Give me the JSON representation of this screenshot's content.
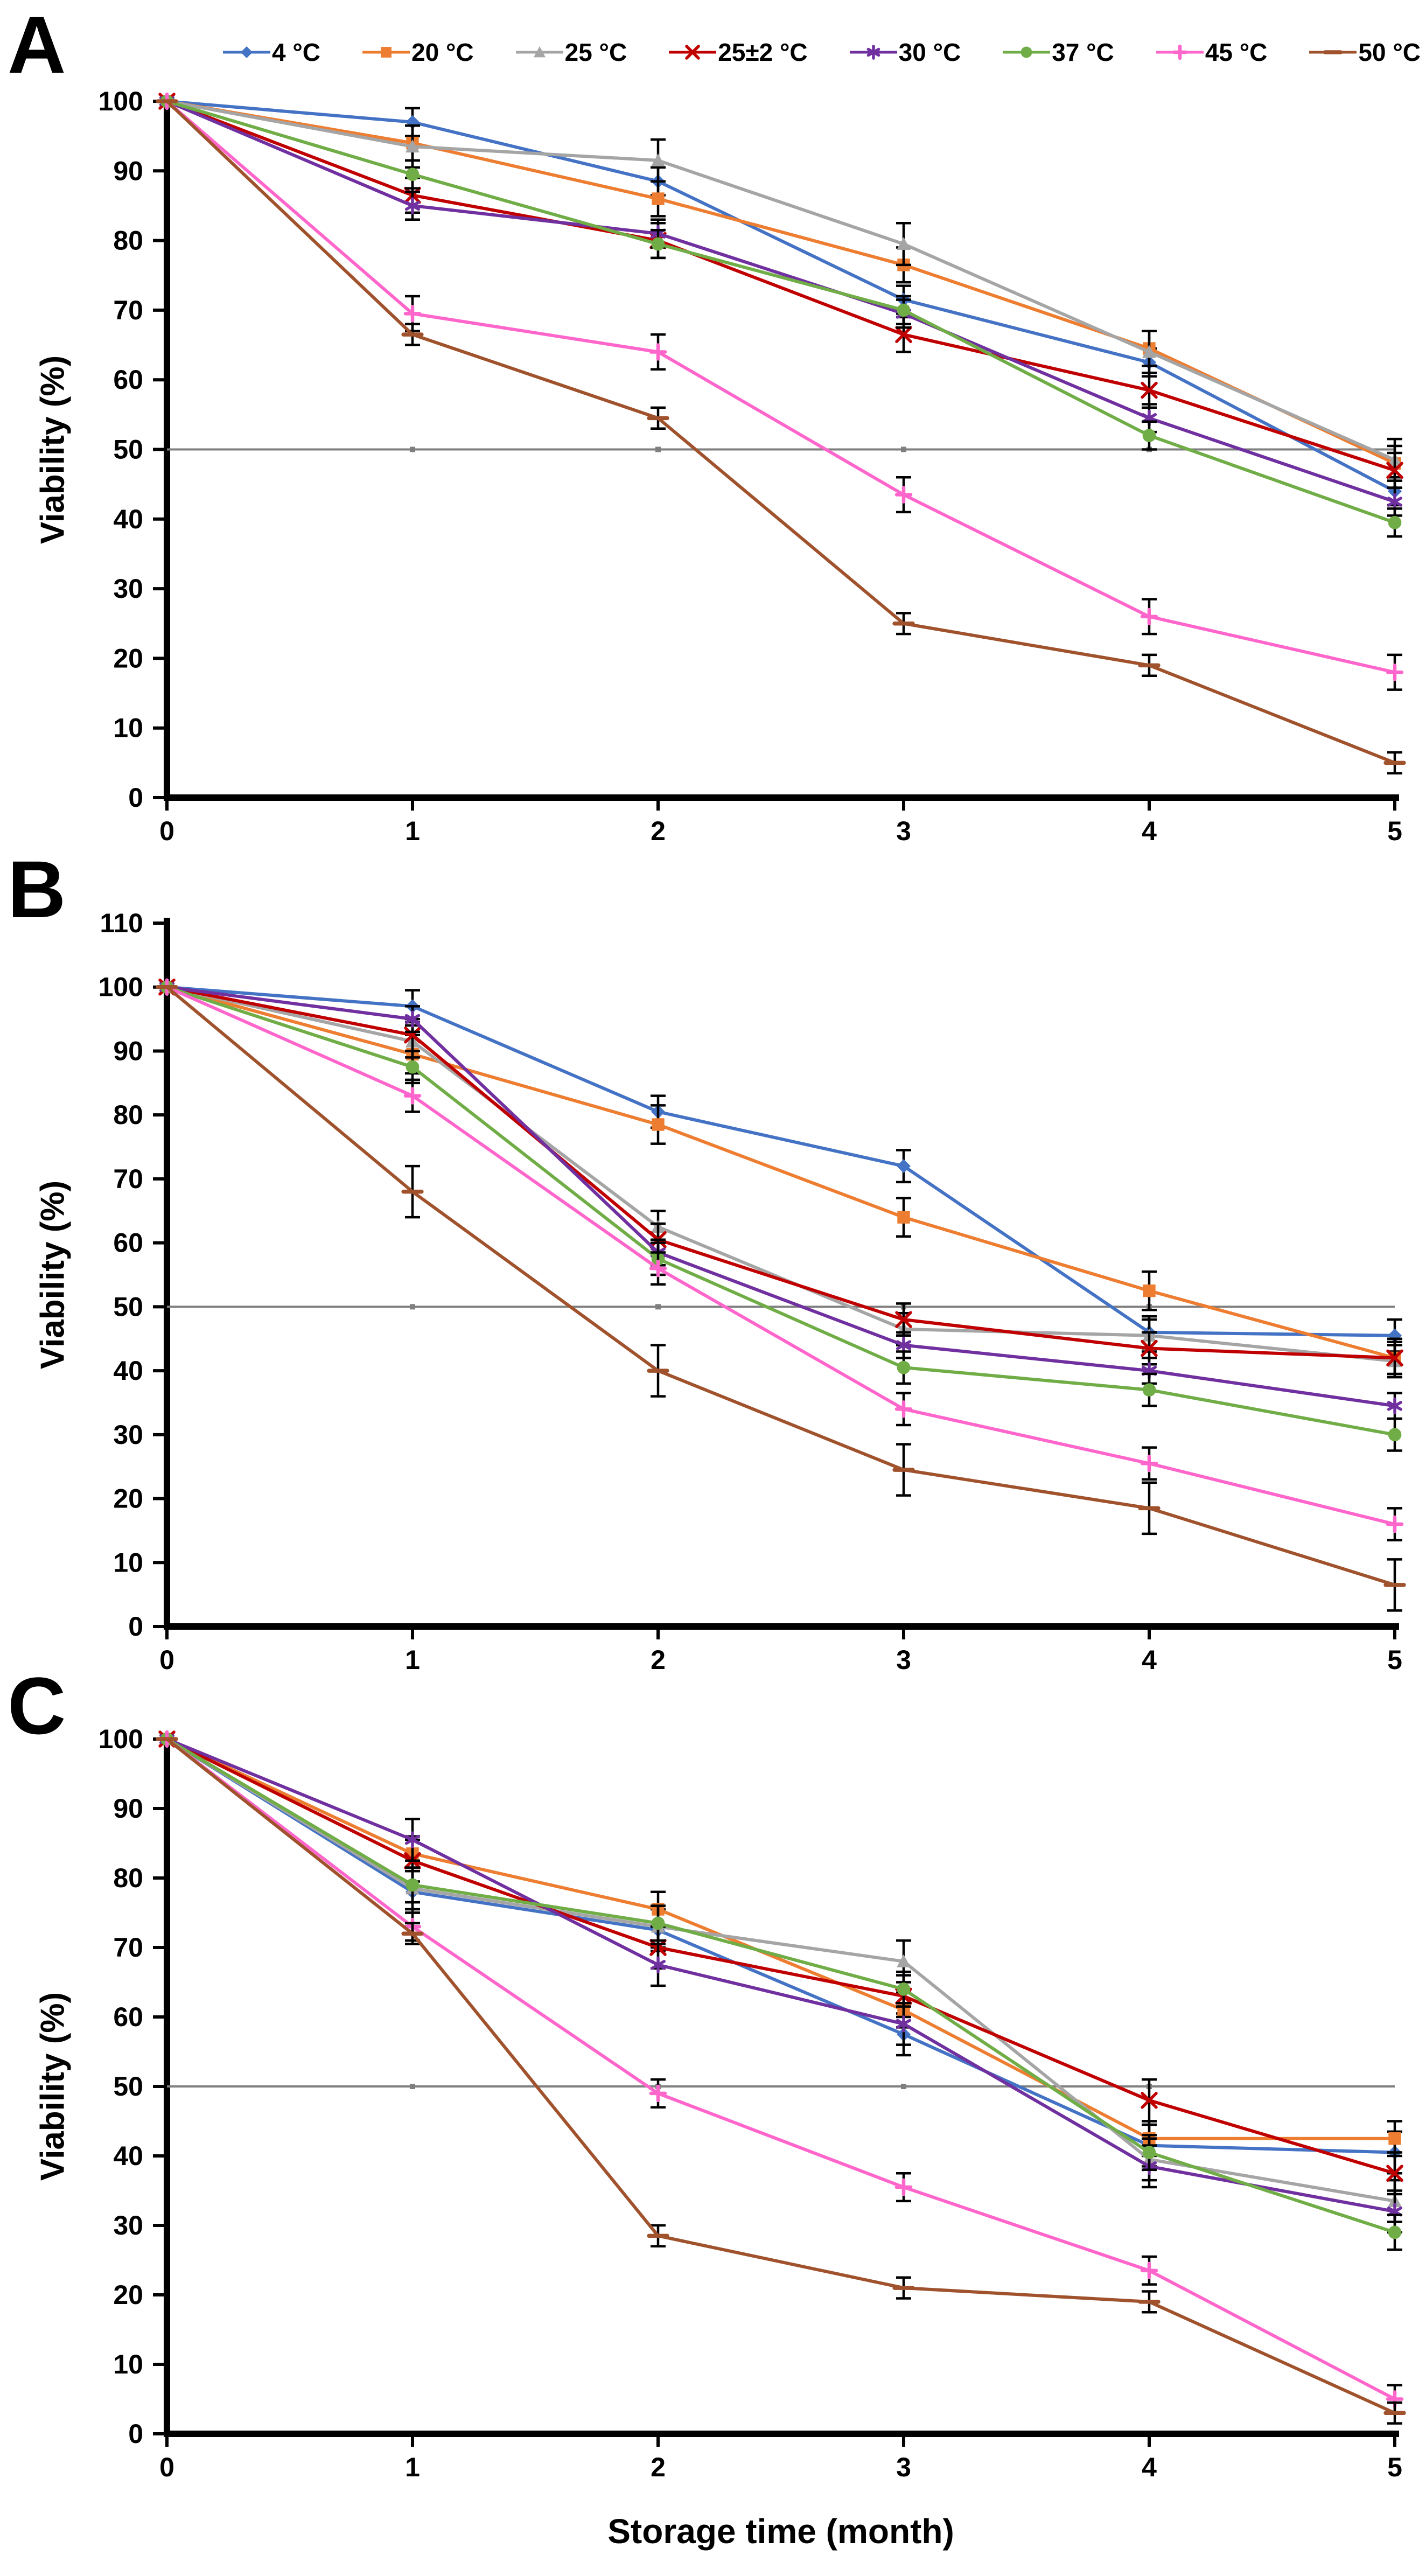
{
  "xlabel": "Storage time (month)",
  "legend": {
    "items": [
      {
        "label": "4 °C",
        "color": "#4472C4",
        "marker": "diamond"
      },
      {
        "label": "20 °C",
        "color": "#ED7D31",
        "marker": "square"
      },
      {
        "label": "25 °C",
        "color": "#A5A5A5",
        "marker": "triangle"
      },
      {
        "label": "25±2 °C",
        "color": "#C00000",
        "marker": "x"
      },
      {
        "label": "30 °C",
        "color": "#7030A0",
        "marker": "star"
      },
      {
        "label": "37 °C",
        "color": "#70AD47",
        "marker": "circle"
      },
      {
        "label": "45 °C",
        "color": "#FF66CC",
        "marker": "plus"
      },
      {
        "label": "50 °C",
        "color": "#A0522D",
        "marker": "dash"
      }
    ]
  },
  "chart_data": [
    {
      "type": "line",
      "panel": "A",
      "ylabel": "Viability (%)",
      "xlabel": "Storage time (month)",
      "x": [
        0,
        1,
        2,
        3,
        4,
        5
      ],
      "ylim": [
        0,
        100
      ],
      "ytick_step": 10,
      "reference_line": 50,
      "reference_line_color": "#7F7F7F",
      "grid": false,
      "legend_position": "top",
      "series": [
        {
          "name": "4 °C",
          "color": "#4472C4",
          "marker": "diamond",
          "err": 2,
          "values": [
            100,
            97,
            88.5,
            71.5,
            62.5,
            44
          ]
        },
        {
          "name": "20 °C",
          "color": "#ED7D31",
          "marker": "square",
          "err": 2.5,
          "values": [
            100,
            94,
            86,
            76.5,
            64.5,
            48
          ]
        },
        {
          "name": "25 °C",
          "color": "#A5A5A5",
          "marker": "triangle",
          "err": 3,
          "values": [
            100,
            93.5,
            91.5,
            79.5,
            64,
            48.5
          ]
        },
        {
          "name": "25±2 °C",
          "color": "#C00000",
          "marker": "x",
          "err": 2.5,
          "values": [
            100,
            86.5,
            80,
            66.5,
            58.5,
            47
          ]
        },
        {
          "name": "30 °C",
          "color": "#7030A0",
          "marker": "star",
          "err": 2,
          "values": [
            100,
            85,
            81,
            69.5,
            54.5,
            42.5
          ]
        },
        {
          "name": "37 °C",
          "color": "#70AD47",
          "marker": "circle",
          "err": 2,
          "values": [
            100,
            89.5,
            79.5,
            70,
            52,
            39.5
          ]
        },
        {
          "name": "45 °C",
          "color": "#FF66CC",
          "marker": "plus",
          "err": 2.5,
          "values": [
            100,
            69.5,
            64,
            43.5,
            26,
            18
          ]
        },
        {
          "name": "50 °C",
          "color": "#A0522D",
          "marker": "dash",
          "err": 1.5,
          "values": [
            100,
            66.5,
            54.5,
            25,
            19,
            5
          ]
        }
      ]
    },
    {
      "type": "line",
      "panel": "B",
      "ylabel": "Viability (%)",
      "xlabel": "Storage time (month)",
      "x": [
        0,
        1,
        2,
        3,
        4,
        5
      ],
      "ylim": [
        0,
        110
      ],
      "ytick_step": 10,
      "reference_line": 50,
      "reference_line_color": "#7F7F7F",
      "grid": false,
      "legend_position": "top",
      "series": [
        {
          "name": "4 °C",
          "color": "#4472C4",
          "marker": "diamond",
          "err": 2.5,
          "values": [
            100,
            97,
            80.5,
            72,
            46,
            45.5
          ]
        },
        {
          "name": "20 °C",
          "color": "#ED7D31",
          "marker": "square",
          "err": 3,
          "values": [
            100,
            89.5,
            78.5,
            64,
            52.5,
            42
          ]
        },
        {
          "name": "25 °C",
          "color": "#A5A5A5",
          "marker": "triangle",
          "err": 2.5,
          "values": [
            100,
            91.5,
            62.5,
            46.5,
            45.5,
            41.5
          ]
        },
        {
          "name": "25±2 °C",
          "color": "#C00000",
          "marker": "x",
          "err": 2.5,
          "values": [
            100,
            92.5,
            60.5,
            48,
            43.5,
            42
          ]
        },
        {
          "name": "30 °C",
          "color": "#7030A0",
          "marker": "star",
          "err": 2,
          "values": [
            100,
            95,
            58.5,
            44,
            40,
            34.5
          ]
        },
        {
          "name": "37 °C",
          "color": "#70AD47",
          "marker": "circle",
          "err": 2.5,
          "values": [
            100,
            87.5,
            57.5,
            40.5,
            37,
            30
          ]
        },
        {
          "name": "45 °C",
          "color": "#FF66CC",
          "marker": "plus",
          "err": 2.5,
          "values": [
            100,
            83,
            56,
            34,
            25.5,
            16
          ]
        },
        {
          "name": "50 °C",
          "color": "#A0522D",
          "marker": "dash",
          "err": 4,
          "values": [
            100,
            68,
            40,
            24.5,
            18.5,
            6.5
          ]
        }
      ]
    },
    {
      "type": "line",
      "panel": "C",
      "ylabel": "Viability (%)",
      "xlabel": "Storage time (month)",
      "x": [
        0,
        1,
        2,
        3,
        4,
        5
      ],
      "ylim": [
        0,
        100
      ],
      "ytick_step": 10,
      "reference_line": 50,
      "reference_line_color": "#7F7F7F",
      "grid": false,
      "legend_position": "top",
      "series": [
        {
          "name": "4 °C",
          "color": "#4472C4",
          "marker": "diamond",
          "err": 3,
          "values": [
            100,
            78,
            72.5,
            57.5,
            41.5,
            40.5
          ]
        },
        {
          "name": "20 °C",
          "color": "#ED7D31",
          "marker": "square",
          "err": 2.5,
          "values": [
            100,
            83.5,
            75.5,
            61,
            42.5,
            42.5
          ]
        },
        {
          "name": "25 °C",
          "color": "#A5A5A5",
          "marker": "triangle",
          "err": 3,
          "values": [
            100,
            78.5,
            73,
            68,
            39.5,
            33.5
          ]
        },
        {
          "name": "25±2 °C",
          "color": "#C00000",
          "marker": "x",
          "err": 3,
          "values": [
            100,
            82.5,
            70,
            63,
            48,
            37.5
          ]
        },
        {
          "name": "30 °C",
          "color": "#7030A0",
          "marker": "star",
          "err": 3,
          "values": [
            100,
            85.5,
            67.5,
            59,
            38.5,
            32
          ]
        },
        {
          "name": "37 °C",
          "color": "#70AD47",
          "marker": "circle",
          "err": 2.5,
          "values": [
            100,
            79,
            73.5,
            64,
            40.5,
            29
          ]
        },
        {
          "name": "45 °C",
          "color": "#FF66CC",
          "marker": "plus",
          "err": 2,
          "values": [
            100,
            73,
            49,
            35.5,
            23.5,
            5
          ]
        },
        {
          "name": "50 °C",
          "color": "#A0522D",
          "marker": "dash",
          "err": 1.5,
          "values": [
            100,
            72,
            28.5,
            21,
            19,
            3
          ]
        }
      ]
    }
  ]
}
